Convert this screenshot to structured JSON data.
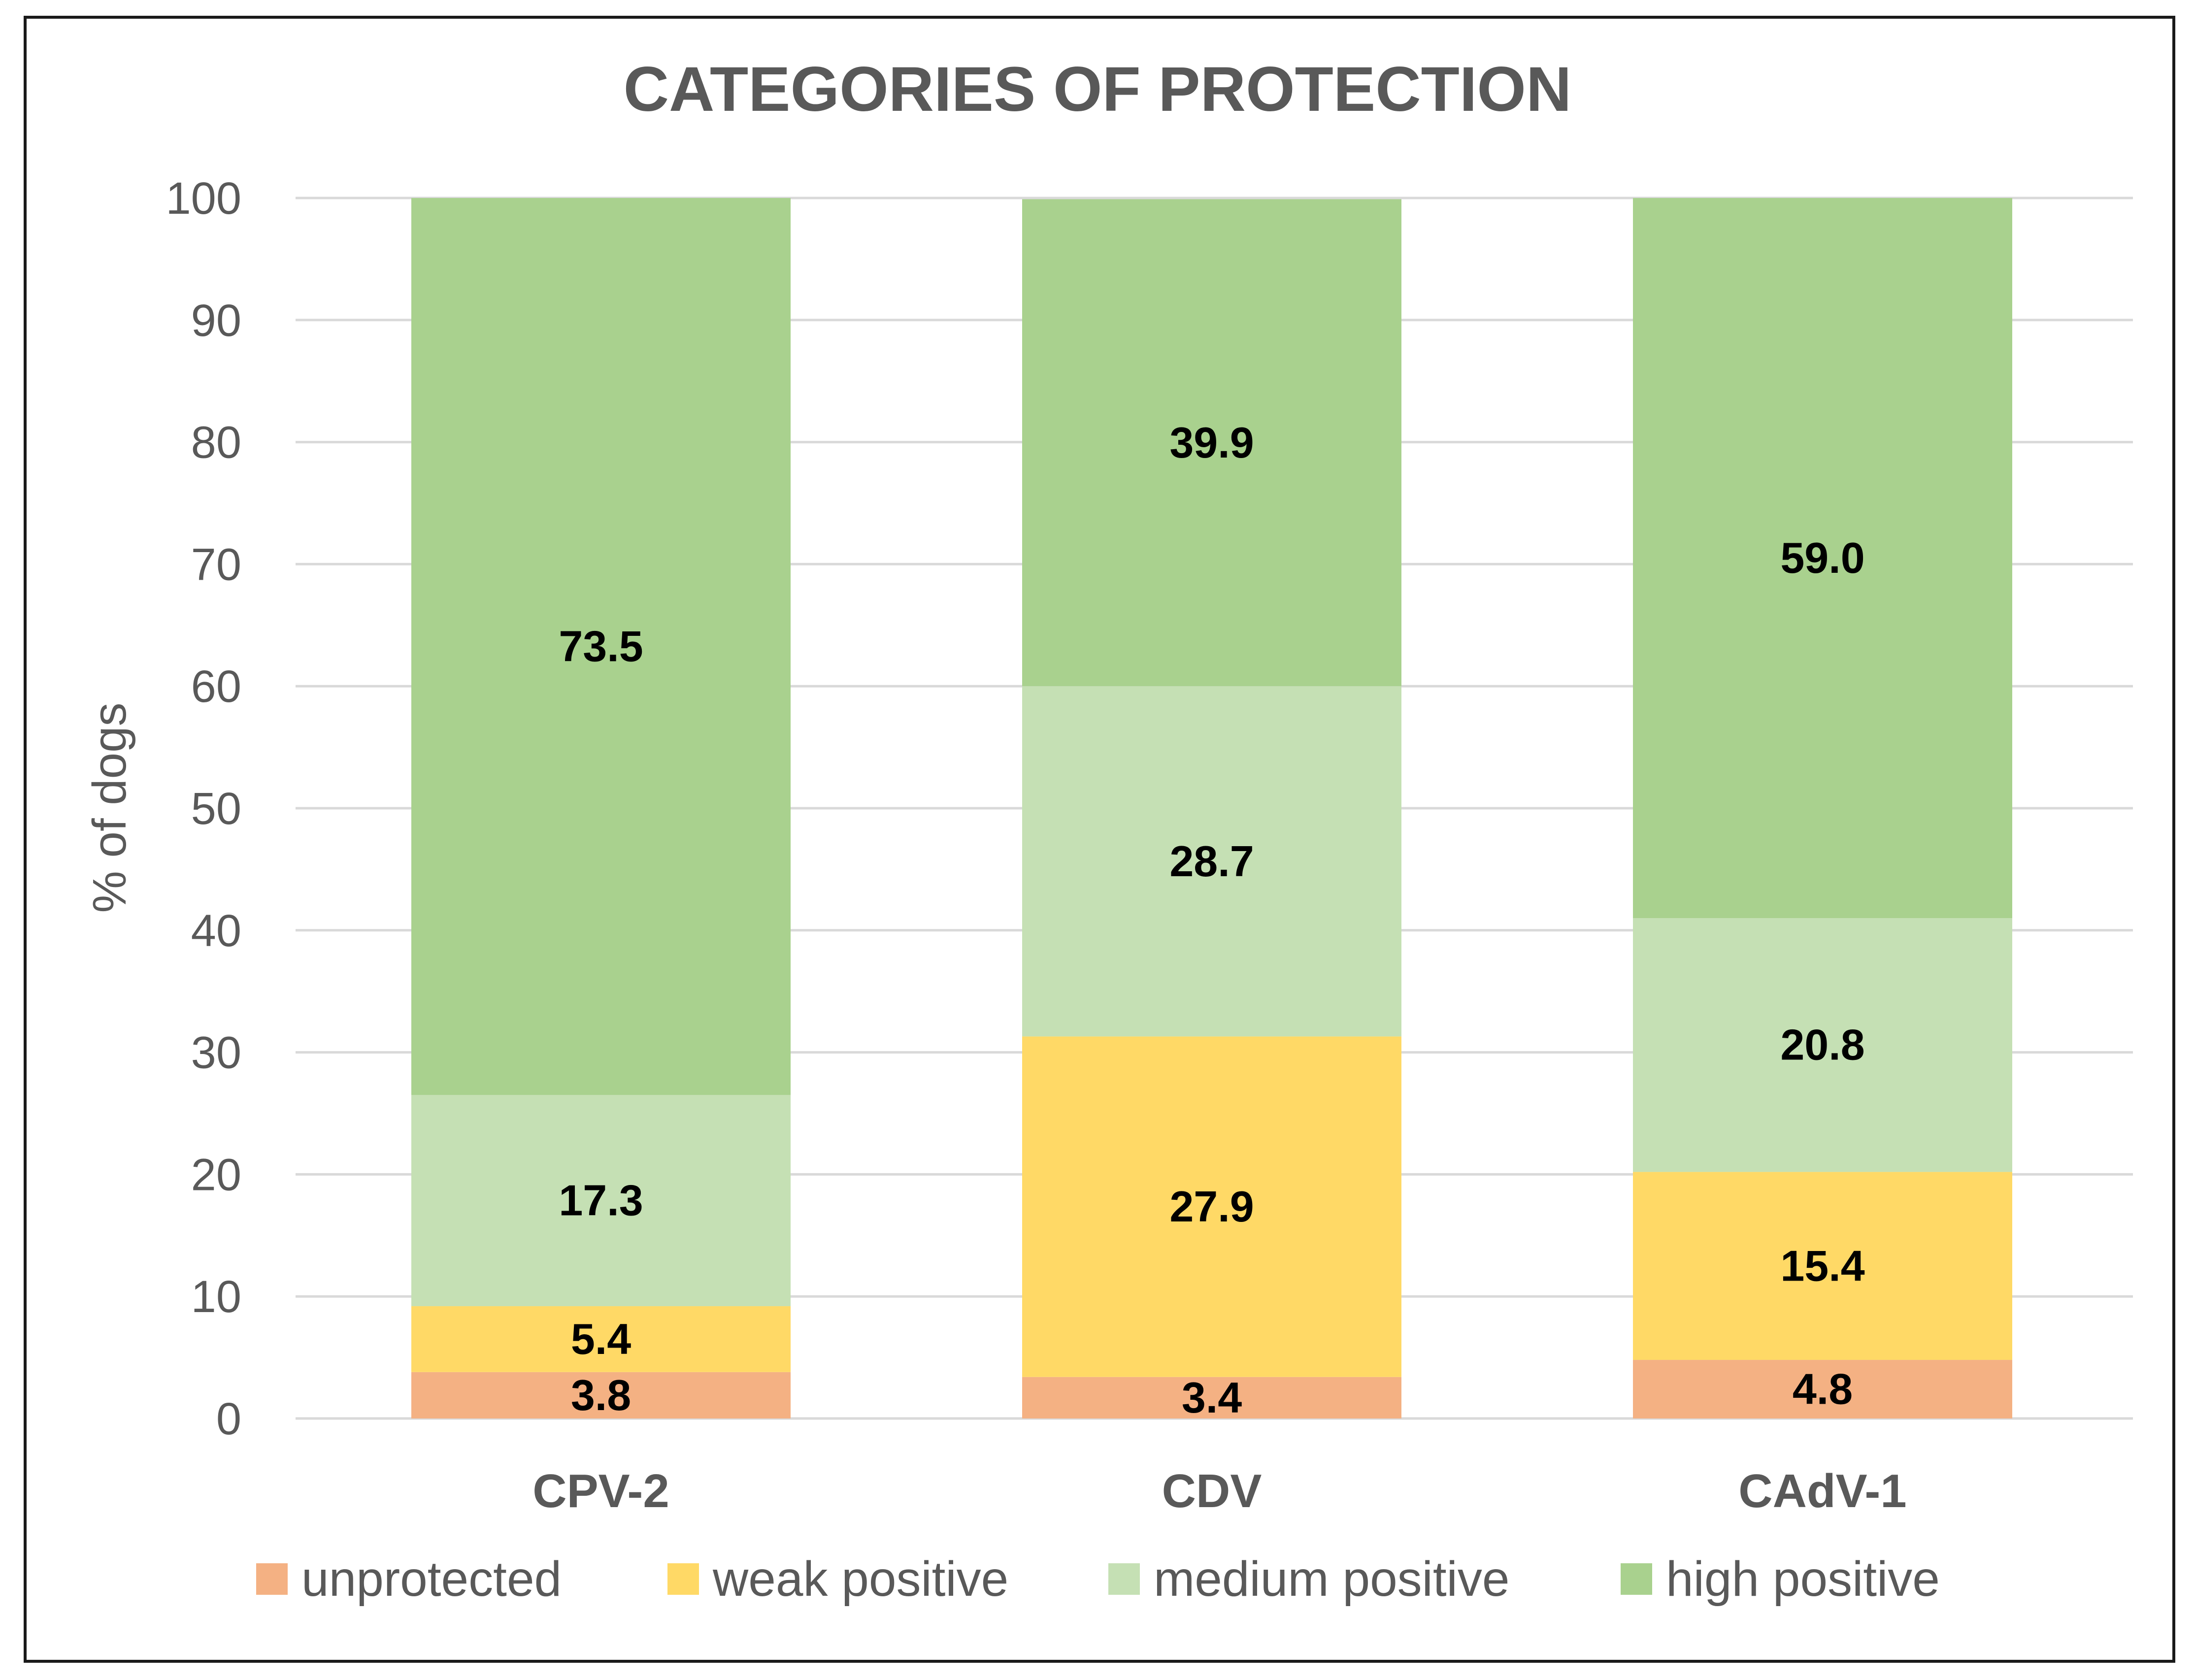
{
  "chart_data": {
    "type": "bar",
    "stacked": true,
    "title": "CATEGORIES OF PROTECTION",
    "xlabel": "",
    "ylabel": "% of dogs",
    "ylim": [
      0,
      100
    ],
    "yticks": [
      0,
      10,
      20,
      30,
      40,
      50,
      60,
      70,
      80,
      90,
      100
    ],
    "categories": [
      "CPV-2",
      "CDV",
      "CAdV-1"
    ],
    "series": [
      {
        "name": "unprotected",
        "color": "#f4b183",
        "values": [
          3.8,
          3.4,
          4.8
        ],
        "labels": [
          "3.8",
          "3.4",
          "4.8"
        ]
      },
      {
        "name": "weak positive",
        "color": "#ffd966",
        "values": [
          5.4,
          27.9,
          15.4
        ],
        "labels": [
          "5.4",
          "27.9",
          "15.4"
        ]
      },
      {
        "name": "medium positive",
        "color": "#c5e0b4",
        "values": [
          17.3,
          28.7,
          20.8
        ],
        "labels": [
          "17.3",
          "28.7",
          "20.8"
        ]
      },
      {
        "name": "high positive",
        "color": "#a9d18e",
        "values": [
          73.5,
          39.9,
          59.0
        ],
        "labels": [
          "73.5",
          "39.9",
          "59.0"
        ]
      }
    ],
    "legend_position": "bottom",
    "grid": true,
    "colors": {
      "gridline": "#d9d9d9",
      "axis_text": "#595959",
      "value_text": "#000000"
    }
  }
}
